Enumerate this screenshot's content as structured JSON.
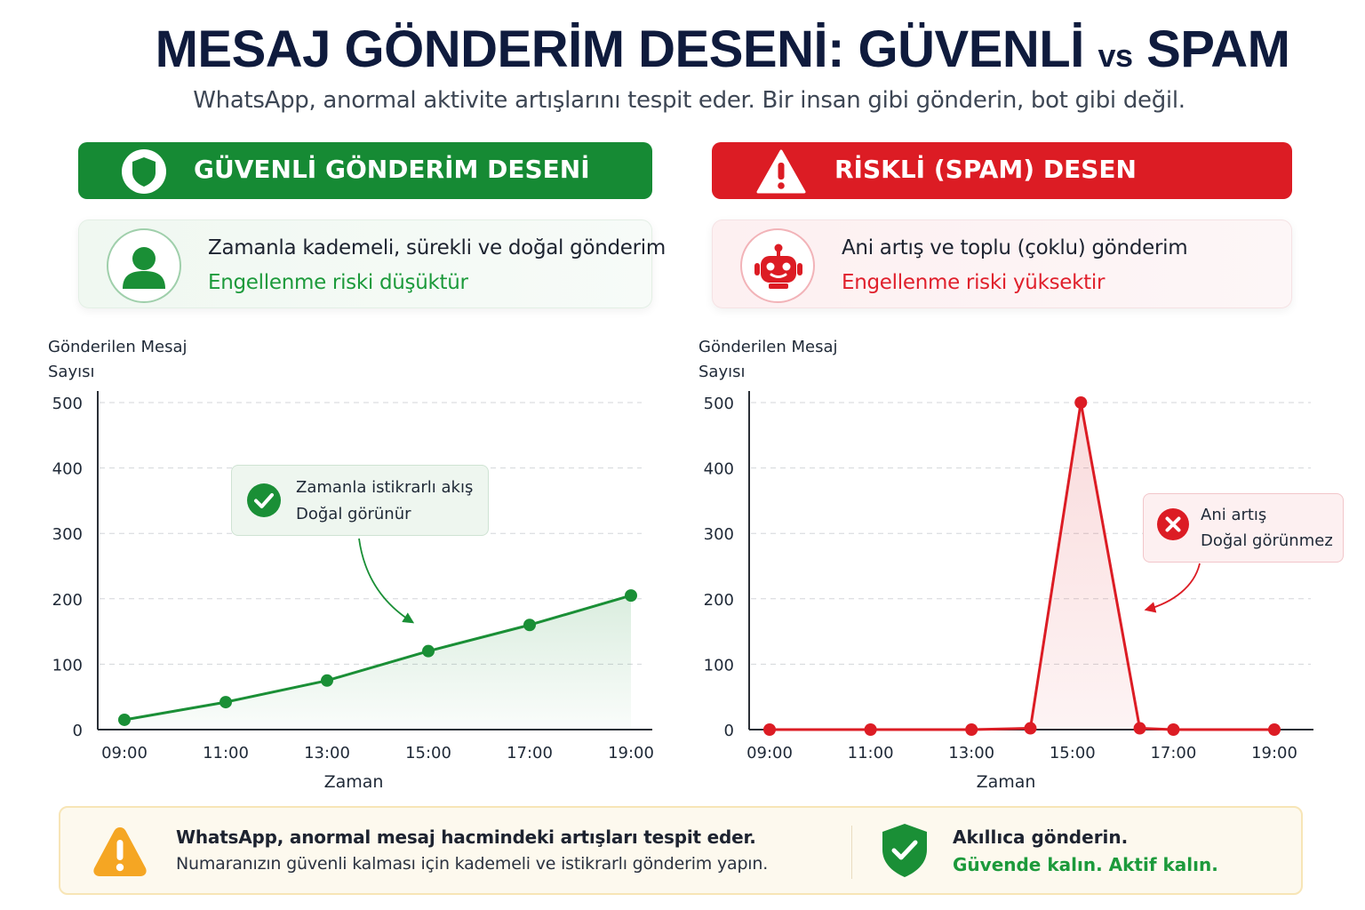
{
  "header": {
    "title_main": "MESAJ GÖNDERİM DESENİ: GÜVENLİ",
    "title_vs": "vs",
    "title_end": "SPAM",
    "subtitle": "WhatsApp, anormal aktivite artışlarını tespit eder. Bir insan gibi gönderin, bot gibi değil."
  },
  "safe_panel": {
    "banner_label": "GÜVENLİ GÖNDERİM DESENİ",
    "banner_icon": "shield-icon",
    "info_icon": "person-icon",
    "info_line1": "Zamanla kademeli, sürekli ve doğal gönderim",
    "info_line2": "Engellenme riski düşüktür",
    "callout_icon": "check-circle-icon",
    "callout_line1": "Zamanla istikrarlı akış",
    "callout_line2": "Doğal görünür"
  },
  "risk_panel": {
    "banner_label": "RİSKLİ (SPAM) DESEN",
    "banner_icon": "warning-triangle-icon",
    "info_icon": "robot-icon",
    "info_line1": "Ani artış ve toplu (çoklu) gönderim",
    "info_line2": "Engellenme riski yüksektir",
    "callout_icon": "x-circle-icon",
    "callout_line1": "Ani artış",
    "callout_line2": "Doğal görünmez"
  },
  "chart_data": [
    {
      "type": "line",
      "ylabel_line1": "Gönderilen Mesaj",
      "ylabel_line2": "Sayısı",
      "xlabel": "Zaman",
      "x_ticks": [
        "09:00",
        "11:00",
        "13:00",
        "15:00",
        "17:00",
        "19:00"
      ],
      "y_ticks": [
        0,
        100,
        200,
        300,
        400,
        500
      ],
      "ylim": [
        0,
        500
      ],
      "xlim_hours": [
        8.5,
        19.5
      ],
      "grid": true,
      "color": "#1a8f36",
      "fill": "area",
      "series": [
        {
          "x": [
            "09:00",
            "11:00",
            "13:00",
            "15:00",
            "17:00",
            "19:00"
          ],
          "y": [
            15,
            42,
            75,
            120,
            160,
            205
          ]
        }
      ]
    },
    {
      "type": "line",
      "ylabel_line1": "Gönderilen Mesaj",
      "ylabel_line2": "Sayısı",
      "xlabel": "Zaman",
      "x_ticks": [
        "09:00",
        "11:00",
        "13:00",
        "15:00",
        "17:00",
        "19:00"
      ],
      "y_ticks": [
        0,
        100,
        200,
        300,
        400,
        500
      ],
      "ylim": [
        0,
        500
      ],
      "xlim_hours": [
        8.5,
        19.5
      ],
      "grid": true,
      "color": "#dc1c24",
      "fill": "area",
      "series": [
        {
          "x": [
            "09:00",
            "11:00",
            "13:00",
            "14:10",
            "15:10",
            "16:20",
            "17:00",
            "19:00"
          ],
          "y": [
            0,
            0,
            0,
            2,
            500,
            2,
            0,
            0
          ]
        }
      ]
    }
  ],
  "footer": {
    "warning_icon": "warning-circle-icon",
    "line1": "WhatsApp, anormal mesaj hacmindeki artışları tespit eder.",
    "line2": "Numaranızın güvenli kalması için kademeli ve istikrarlı gönderim yapın.",
    "badge_icon": "shield-check-icon",
    "tag1": "Akıllıca gönderin.",
    "tag2": "Güvende kalın. Aktif kalın."
  }
}
